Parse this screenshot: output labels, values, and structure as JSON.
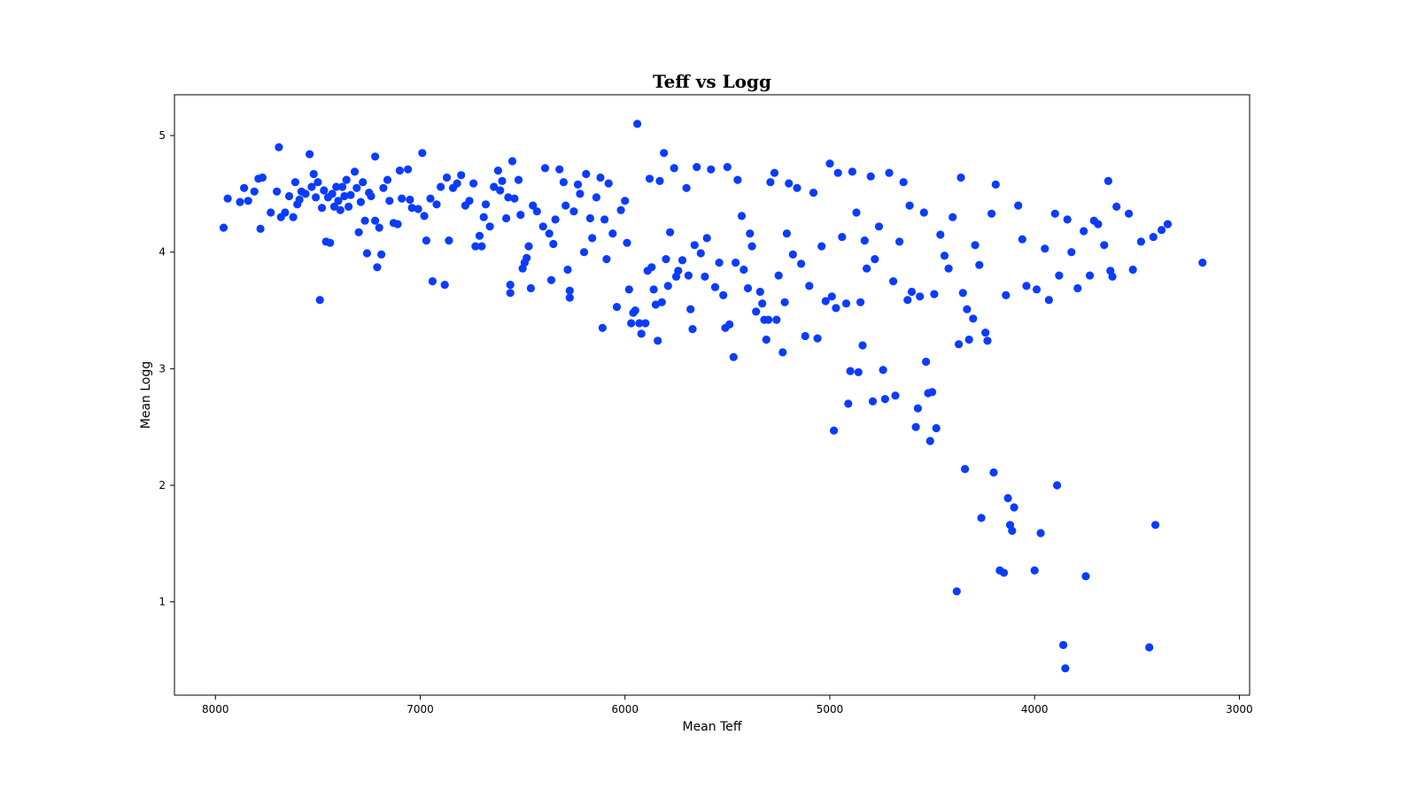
{
  "chart_data": {
    "type": "scatter",
    "title": "Teff vs Logg",
    "xlabel": "Mean Teff",
    "ylabel": "Mean Logg",
    "xlim": [
      8200,
      2950
    ],
    "ylim": [
      0.2,
      5.35
    ],
    "x_inverted": true,
    "xticks": [
      8000,
      7000,
      6000,
      5000,
      4000,
      3000
    ],
    "yticks": [
      1,
      2,
      3,
      4,
      5
    ],
    "grid": false,
    "legend": "none",
    "marker_color": "#0a3cff",
    "series": [
      {
        "points": [
          [
            7960,
            4.21
          ],
          [
            7940,
            4.46
          ],
          [
            7880,
            4.43
          ],
          [
            7860,
            4.55
          ],
          [
            7840,
            4.44
          ],
          [
            7810,
            4.52
          ],
          [
            7790,
            4.63
          ],
          [
            7780,
            4.2
          ],
          [
            7770,
            4.64
          ],
          [
            7730,
            4.34
          ],
          [
            7700,
            4.52
          ],
          [
            7690,
            4.9
          ],
          [
            7680,
            4.3
          ],
          [
            7660,
            4.34
          ],
          [
            7640,
            4.48
          ],
          [
            7620,
            4.3
          ],
          [
            7610,
            4.6
          ],
          [
            7600,
            4.41
          ],
          [
            7590,
            4.45
          ],
          [
            7580,
            4.52
          ],
          [
            7560,
            4.5
          ],
          [
            7540,
            4.84
          ],
          [
            7530,
            4.56
          ],
          [
            7520,
            4.67
          ],
          [
            7510,
            4.47
          ],
          [
            7500,
            4.6
          ],
          [
            7490,
            3.59
          ],
          [
            7480,
            4.38
          ],
          [
            7470,
            4.53
          ],
          [
            7460,
            4.09
          ],
          [
            7450,
            4.47
          ],
          [
            7440,
            4.08
          ],
          [
            7430,
            4.5
          ],
          [
            7420,
            4.39
          ],
          [
            7410,
            4.56
          ],
          [
            7400,
            4.44
          ],
          [
            7390,
            4.36
          ],
          [
            7380,
            4.56
          ],
          [
            7370,
            4.48
          ],
          [
            7360,
            4.62
          ],
          [
            7350,
            4.39
          ],
          [
            7340,
            4.49
          ],
          [
            7320,
            4.69
          ],
          [
            7310,
            4.55
          ],
          [
            7300,
            4.17
          ],
          [
            7290,
            4.43
          ],
          [
            7280,
            4.6
          ],
          [
            7270,
            4.27
          ],
          [
            7260,
            3.99
          ],
          [
            7250,
            4.51
          ],
          [
            7240,
            4.48
          ],
          [
            7220,
            4.27
          ],
          [
            7220,
            4.82
          ],
          [
            7210,
            3.87
          ],
          [
            7200,
            4.21
          ],
          [
            7190,
            3.98
          ],
          [
            7180,
            4.55
          ],
          [
            7160,
            4.62
          ],
          [
            7150,
            4.44
          ],
          [
            7130,
            4.25
          ],
          [
            7110,
            4.24
          ],
          [
            7100,
            4.7
          ],
          [
            7090,
            4.46
          ],
          [
            7060,
            4.71
          ],
          [
            7050,
            4.45
          ],
          [
            7040,
            4.38
          ],
          [
            7010,
            4.37
          ],
          [
            6990,
            4.85
          ],
          [
            6980,
            4.31
          ],
          [
            6970,
            4.1
          ],
          [
            6950,
            4.46
          ],
          [
            6940,
            3.75
          ],
          [
            6920,
            4.41
          ],
          [
            6900,
            4.56
          ],
          [
            6880,
            3.72
          ],
          [
            6870,
            4.64
          ],
          [
            6860,
            4.1
          ],
          [
            6840,
            4.55
          ],
          [
            6820,
            4.59
          ],
          [
            6800,
            4.66
          ],
          [
            6780,
            4.4
          ],
          [
            6760,
            4.44
          ],
          [
            6740,
            4.59
          ],
          [
            6730,
            4.05
          ],
          [
            6710,
            4.14
          ],
          [
            6700,
            4.05
          ],
          [
            6690,
            4.3
          ],
          [
            6680,
            4.41
          ],
          [
            6660,
            4.22
          ],
          [
            6640,
            4.56
          ],
          [
            6620,
            4.7
          ],
          [
            6610,
            4.53
          ],
          [
            6600,
            4.61
          ],
          [
            6580,
            4.29
          ],
          [
            6570,
            4.47
          ],
          [
            6560,
            3.72
          ],
          [
            6560,
            3.65
          ],
          [
            6550,
            4.78
          ],
          [
            6540,
            4.46
          ],
          [
            6520,
            4.62
          ],
          [
            6510,
            4.32
          ],
          [
            6500,
            3.86
          ],
          [
            6490,
            3.91
          ],
          [
            6480,
            3.95
          ],
          [
            6470,
            4.05
          ],
          [
            6460,
            3.69
          ],
          [
            6450,
            4.4
          ],
          [
            6430,
            4.35
          ],
          [
            6400,
            4.22
          ],
          [
            6390,
            4.72
          ],
          [
            6370,
            4.16
          ],
          [
            6360,
            3.76
          ],
          [
            6350,
            4.07
          ],
          [
            6340,
            4.28
          ],
          [
            6320,
            4.71
          ],
          [
            6300,
            4.6
          ],
          [
            6290,
            4.4
          ],
          [
            6280,
            3.85
          ],
          [
            6270,
            3.67
          ],
          [
            6270,
            3.61
          ],
          [
            6250,
            4.35
          ],
          [
            6230,
            4.58
          ],
          [
            6220,
            4.5
          ],
          [
            6200,
            4.0
          ],
          [
            6190,
            4.67
          ],
          [
            6170,
            4.29
          ],
          [
            6160,
            4.12
          ],
          [
            6140,
            4.47
          ],
          [
            6120,
            4.64
          ],
          [
            6110,
            3.35
          ],
          [
            6100,
            4.28
          ],
          [
            6090,
            3.94
          ],
          [
            6080,
            4.59
          ],
          [
            6060,
            4.16
          ],
          [
            6040,
            3.53
          ],
          [
            6020,
            4.36
          ],
          [
            6000,
            4.44
          ],
          [
            5990,
            4.08
          ],
          [
            5980,
            3.68
          ],
          [
            5970,
            3.39
          ],
          [
            5960,
            3.48
          ],
          [
            5950,
            3.5
          ],
          [
            5940,
            5.1
          ],
          [
            5930,
            3.39
          ],
          [
            5920,
            3.3
          ],
          [
            5900,
            3.39
          ],
          [
            5890,
            3.84
          ],
          [
            5880,
            4.63
          ],
          [
            5870,
            3.87
          ],
          [
            5860,
            3.68
          ],
          [
            5850,
            3.55
          ],
          [
            5840,
            3.24
          ],
          [
            5830,
            4.61
          ],
          [
            5820,
            3.57
          ],
          [
            5810,
            4.85
          ],
          [
            5800,
            3.94
          ],
          [
            5790,
            3.71
          ],
          [
            5780,
            4.17
          ],
          [
            5760,
            4.72
          ],
          [
            5750,
            3.79
          ],
          [
            5740,
            3.84
          ],
          [
            5720,
            3.93
          ],
          [
            5700,
            4.55
          ],
          [
            5690,
            3.8
          ],
          [
            5680,
            3.51
          ],
          [
            5670,
            3.34
          ],
          [
            5660,
            4.06
          ],
          [
            5650,
            4.73
          ],
          [
            5630,
            3.99
          ],
          [
            5610,
            3.79
          ],
          [
            5600,
            4.12
          ],
          [
            5580,
            4.71
          ],
          [
            5560,
            3.7
          ],
          [
            5540,
            3.91
          ],
          [
            5520,
            3.63
          ],
          [
            5510,
            3.35
          ],
          [
            5500,
            4.73
          ],
          [
            5490,
            3.38
          ],
          [
            5470,
            3.1
          ],
          [
            5460,
            3.91
          ],
          [
            5450,
            4.62
          ],
          [
            5430,
            4.31
          ],
          [
            5420,
            3.85
          ],
          [
            5400,
            3.69
          ],
          [
            5390,
            4.16
          ],
          [
            5380,
            4.05
          ],
          [
            5360,
            3.49
          ],
          [
            5340,
            3.66
          ],
          [
            5330,
            3.56
          ],
          [
            5320,
            3.42
          ],
          [
            5310,
            3.25
          ],
          [
            5300,
            3.42
          ],
          [
            5290,
            4.6
          ],
          [
            5270,
            4.68
          ],
          [
            5260,
            3.42
          ],
          [
            5250,
            3.8
          ],
          [
            5230,
            3.14
          ],
          [
            5220,
            3.57
          ],
          [
            5210,
            4.16
          ],
          [
            5200,
            4.59
          ],
          [
            5180,
            3.98
          ],
          [
            5160,
            4.55
          ],
          [
            5140,
            3.9
          ],
          [
            5120,
            3.28
          ],
          [
            5100,
            3.71
          ],
          [
            5080,
            4.51
          ],
          [
            5060,
            3.26
          ],
          [
            5040,
            4.05
          ],
          [
            5020,
            3.58
          ],
          [
            5000,
            4.76
          ],
          [
            4990,
            3.62
          ],
          [
            4980,
            2.47
          ],
          [
            4970,
            3.52
          ],
          [
            4960,
            4.68
          ],
          [
            4940,
            4.13
          ],
          [
            4920,
            3.56
          ],
          [
            4910,
            2.7
          ],
          [
            4900,
            2.98
          ],
          [
            4890,
            4.69
          ],
          [
            4870,
            4.34
          ],
          [
            4860,
            2.97
          ],
          [
            4850,
            3.57
          ],
          [
            4840,
            3.2
          ],
          [
            4830,
            4.1
          ],
          [
            4820,
            3.86
          ],
          [
            4800,
            4.65
          ],
          [
            4790,
            2.72
          ],
          [
            4780,
            3.94
          ],
          [
            4760,
            4.22
          ],
          [
            4740,
            2.99
          ],
          [
            4730,
            2.74
          ],
          [
            4710,
            4.68
          ],
          [
            4690,
            3.75
          ],
          [
            4680,
            2.77
          ],
          [
            4660,
            4.09
          ],
          [
            4640,
            4.6
          ],
          [
            4620,
            3.59
          ],
          [
            4610,
            4.4
          ],
          [
            4600,
            3.66
          ],
          [
            4580,
            2.5
          ],
          [
            4570,
            2.66
          ],
          [
            4560,
            3.62
          ],
          [
            4540,
            4.34
          ],
          [
            4530,
            3.06
          ],
          [
            4520,
            2.79
          ],
          [
            4510,
            2.38
          ],
          [
            4500,
            2.8
          ],
          [
            4490,
            3.64
          ],
          [
            4480,
            2.49
          ],
          [
            4460,
            4.15
          ],
          [
            4440,
            3.97
          ],
          [
            4420,
            3.86
          ],
          [
            4400,
            4.3
          ],
          [
            4380,
            1.09
          ],
          [
            4370,
            3.21
          ],
          [
            4360,
            4.64
          ],
          [
            4350,
            3.65
          ],
          [
            4340,
            2.14
          ],
          [
            4330,
            3.51
          ],
          [
            4320,
            3.25
          ],
          [
            4300,
            3.43
          ],
          [
            4290,
            4.06
          ],
          [
            4270,
            3.89
          ],
          [
            4260,
            1.72
          ],
          [
            4240,
            3.31
          ],
          [
            4230,
            3.24
          ],
          [
            4210,
            4.33
          ],
          [
            4200,
            2.11
          ],
          [
            4190,
            4.58
          ],
          [
            4170,
            1.27
          ],
          [
            4150,
            1.25
          ],
          [
            4140,
            3.63
          ],
          [
            4130,
            1.89
          ],
          [
            4120,
            1.66
          ],
          [
            4110,
            1.61
          ],
          [
            4100,
            1.81
          ],
          [
            4080,
            4.4
          ],
          [
            4060,
            4.11
          ],
          [
            4040,
            3.71
          ],
          [
            4000,
            1.27
          ],
          [
            3990,
            3.68
          ],
          [
            3970,
            1.59
          ],
          [
            3950,
            4.03
          ],
          [
            3930,
            3.59
          ],
          [
            3900,
            4.33
          ],
          [
            3890,
            2.0
          ],
          [
            3880,
            3.8
          ],
          [
            3860,
            0.63
          ],
          [
            3850,
            0.43
          ],
          [
            3840,
            4.28
          ],
          [
            3820,
            4.0
          ],
          [
            3790,
            3.69
          ],
          [
            3760,
            4.18
          ],
          [
            3750,
            1.22
          ],
          [
            3730,
            3.8
          ],
          [
            3710,
            4.27
          ],
          [
            3690,
            4.24
          ],
          [
            3660,
            4.06
          ],
          [
            3640,
            4.61
          ],
          [
            3630,
            3.84
          ],
          [
            3620,
            3.79
          ],
          [
            3600,
            4.39
          ],
          [
            3540,
            4.33
          ],
          [
            3520,
            3.85
          ],
          [
            3480,
            4.09
          ],
          [
            3440,
            0.61
          ],
          [
            3420,
            4.13
          ],
          [
            3410,
            1.66
          ],
          [
            3380,
            4.19
          ],
          [
            3350,
            4.24
          ],
          [
            3180,
            3.91
          ]
        ]
      }
    ]
  }
}
